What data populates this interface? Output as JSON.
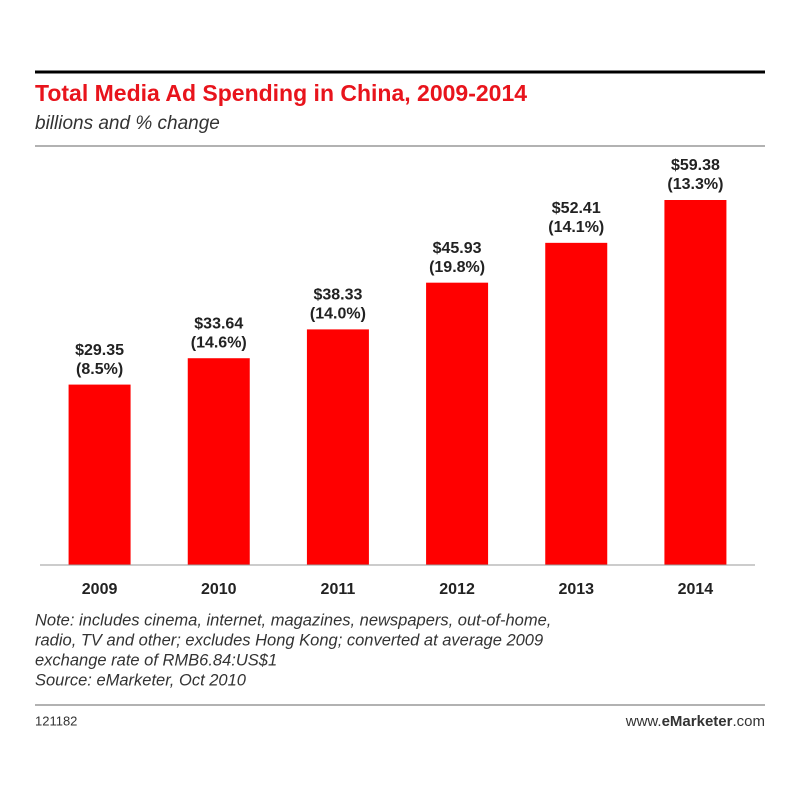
{
  "chart_data": {
    "type": "bar",
    "title": "Total Media Ad Spending in China, 2009-2014",
    "subtitle": "billions and % change",
    "categories": [
      "2009",
      "2010",
      "2011",
      "2012",
      "2013",
      "2014"
    ],
    "values": [
      29.35,
      33.64,
      38.33,
      45.93,
      52.41,
      59.38
    ],
    "value_labels": [
      "$29.35",
      "$33.64",
      "$38.33",
      "$45.93",
      "$52.41",
      "$59.38"
    ],
    "pct_change": [
      8.5,
      14.6,
      14.0,
      19.8,
      14.1,
      13.3
    ],
    "pct_change_labels": [
      "(8.5%)",
      "(14.6%)",
      "(14.0%)",
      "(19.8%)",
      "(14.1%)",
      "(13.3%)"
    ],
    "color": "#ff0000",
    "notes": [
      "Note: includes cinema, internet, magazines, newspapers, out-of-home,",
      "radio, TV and other; excludes Hong Kong; converted at average 2009",
      "exchange rate of RMB6.84:US$1",
      "Source: eMarketer, Oct 2010"
    ],
    "chart_id": "121182",
    "site": [
      "www.",
      "eMarketer",
      ".com"
    ]
  }
}
